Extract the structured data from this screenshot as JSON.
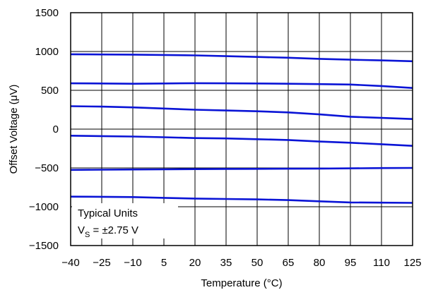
{
  "chart_data": {
    "type": "line",
    "xlabel": "Temperature (°C)",
    "ylabel": "Offset Voltage (μV)",
    "xlim": [
      -40,
      125
    ],
    "ylim": [
      -1500,
      1500
    ],
    "x_ticks": [
      -40,
      -25,
      -10,
      5,
      20,
      35,
      50,
      65,
      80,
      95,
      110,
      125
    ],
    "x_tick_labels": [
      "−40",
      "−25",
      "−10",
      "5",
      "20",
      "35",
      "50",
      "65",
      "80",
      "95",
      "110",
      "125"
    ],
    "y_ticks": [
      1500,
      1000,
      500,
      0,
      -500,
      -1000,
      -1500
    ],
    "y_tick_labels": [
      "1500",
      "1000",
      "500",
      "0",
      "−500",
      "−1000",
      "−1500"
    ],
    "grid": true,
    "legend": {
      "placement": "bottom-left",
      "line1": "Typical Units",
      "line2_prefix": "V",
      "line2_sub": "S",
      "line2_suffix": " = ±2.75 V"
    },
    "x": [
      -40,
      -25,
      -10,
      5,
      20,
      35,
      50,
      65,
      80,
      95,
      110,
      125
    ],
    "series": [
      {
        "values": [
          965,
          962,
          960,
          955,
          950,
          940,
          930,
          920,
          905,
          895,
          885,
          875
        ]
      },
      {
        "values": [
          590,
          588,
          585,
          588,
          592,
          590,
          588,
          585,
          580,
          575,
          555,
          530
        ]
      },
      {
        "values": [
          295,
          290,
          280,
          265,
          250,
          240,
          230,
          215,
          190,
          160,
          145,
          130
        ]
      },
      {
        "values": [
          -85,
          -90,
          -95,
          -105,
          -115,
          -120,
          -130,
          -140,
          -160,
          -175,
          -195,
          -215
        ]
      },
      {
        "values": [
          -525,
          -523,
          -520,
          -518,
          -515,
          -513,
          -512,
          -510,
          -508,
          -505,
          -502,
          -500
        ]
      },
      {
        "values": [
          -870,
          -872,
          -875,
          -885,
          -895,
          -900,
          -905,
          -915,
          -930,
          -945,
          -947,
          -950
        ]
      }
    ],
    "line_color": "#0a14d6"
  }
}
